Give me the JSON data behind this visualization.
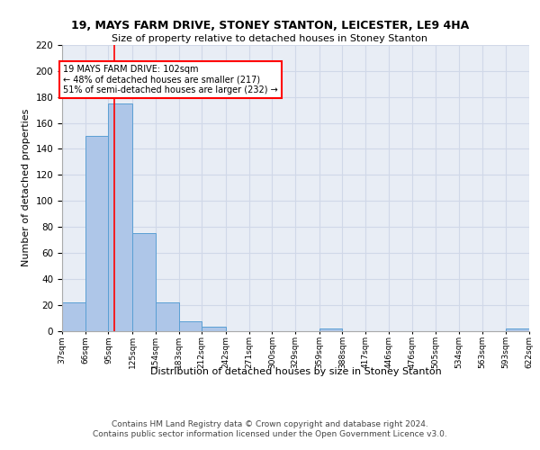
{
  "title1": "19, MAYS FARM DRIVE, STONEY STANTON, LEICESTER, LE9 4HA",
  "title2": "Size of property relative to detached houses in Stoney Stanton",
  "xlabel": "Distribution of detached houses by size in Stoney Stanton",
  "ylabel": "Number of detached properties",
  "bin_edges": [
    37,
    66,
    95,
    125,
    154,
    183,
    212,
    242,
    271,
    300,
    329,
    359,
    388,
    417,
    446,
    476,
    505,
    534,
    563,
    593,
    622
  ],
  "bar_heights": [
    22,
    150,
    175,
    75,
    22,
    7,
    3,
    0,
    0,
    0,
    0,
    2,
    0,
    0,
    0,
    0,
    0,
    0,
    0,
    2
  ],
  "bar_color": "#aec6e8",
  "bar_edge_color": "#5a9fd4",
  "grid_color": "#d0d8e8",
  "background_color": "#e8edf5",
  "red_line_x": 102,
  "annotation_text": "19 MAYS FARM DRIVE: 102sqm\n← 48% of detached houses are smaller (217)\n51% of semi-detached houses are larger (232) →",
  "annotation_box_color": "white",
  "annotation_box_edge": "red",
  "footer_text": "Contains HM Land Registry data © Crown copyright and database right 2024.\nContains public sector information licensed under the Open Government Licence v3.0.",
  "ylim": [
    0,
    220
  ],
  "yticks": [
    0,
    20,
    40,
    60,
    80,
    100,
    120,
    140,
    160,
    180,
    200,
    220
  ]
}
